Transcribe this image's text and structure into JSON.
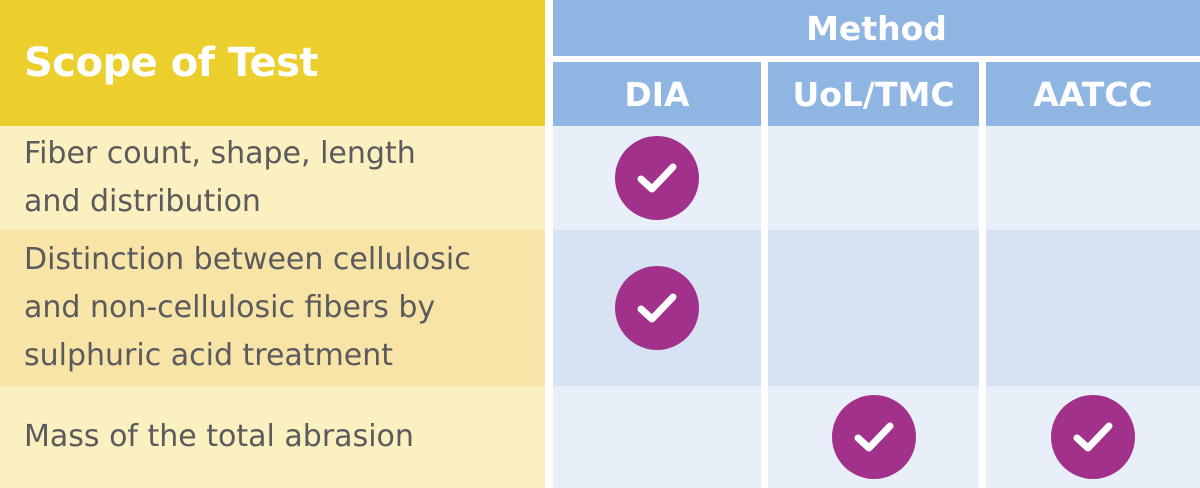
{
  "header": {
    "scope_label": "Scope of Test",
    "method_label": "Method",
    "columns": [
      "DIA",
      "UoL/TMC",
      "AATCC"
    ]
  },
  "rows": [
    {
      "scope_lines": [
        "Fiber count, shape, length",
        "and distribution"
      ],
      "checks": [
        true,
        false,
        false
      ]
    },
    {
      "scope_lines": [
        "Distinction between cellulosic",
        "and non-cellulosic fibers by",
        "sulphuric acid treatment"
      ],
      "checks": [
        true,
        false,
        false
      ]
    },
    {
      "scope_lines": [
        "Mass of the total abrasion"
      ],
      "checks": [
        false,
        true,
        true
      ]
    }
  ],
  "icons": {
    "check": "check-circle-icon"
  },
  "colors": {
    "scope_header_bg": "#eccf2c",
    "method_header_bg": "#8fb5e3",
    "check_bg": "#a1318a"
  }
}
